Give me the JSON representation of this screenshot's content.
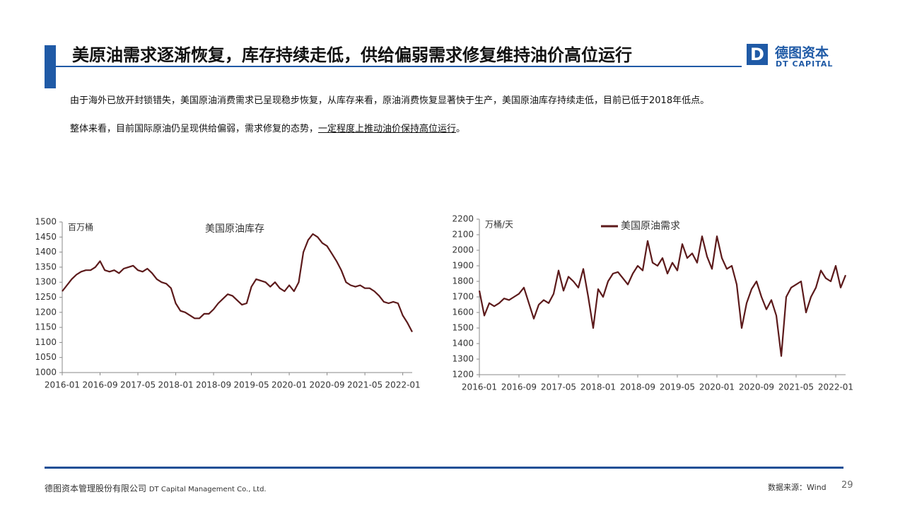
{
  "header": {
    "title": "美原油需求逐渐恢复，库存持续走低，供给偏弱需求修复维持油价高位运行",
    "logo_cn": "德图资本",
    "logo_en": "DT CAPITAL",
    "logo_mark": "D"
  },
  "body": {
    "paragraph_1": "由于海外已放开封锁错失，美国原油消费需求已呈现稳步恢复，从库存来看，原油消费恢复显著快于生产，美国原油库存持续走低，目前已低于2018年低点。",
    "paragraph_2_plain": "整体来看，目前国际原油仍呈现供给偏弱，需求修复的态势，",
    "paragraph_2_underlined": "一定程度上推动油价保持高位运行",
    "paragraph_2_end": "。"
  },
  "chart_data": [
    {
      "type": "line",
      "unit_label": "百万桶",
      "legend_line": false,
      "x": [
        "2016-01",
        "2016-02",
        "2016-03",
        "2016-04",
        "2016-05",
        "2016-06",
        "2016-07",
        "2016-08",
        "2016-09",
        "2016-10",
        "2016-11",
        "2016-12",
        "2017-01",
        "2017-02",
        "2017-03",
        "2017-04",
        "2017-05",
        "2017-06",
        "2017-07",
        "2017-08",
        "2017-09",
        "2017-10",
        "2017-11",
        "2017-12",
        "2018-01",
        "2018-02",
        "2018-03",
        "2018-04",
        "2018-05",
        "2018-06",
        "2018-07",
        "2018-08",
        "2018-09",
        "2018-10",
        "2018-11",
        "2018-12",
        "2019-01",
        "2019-02",
        "2019-03",
        "2019-04",
        "2019-05",
        "2019-06",
        "2019-07",
        "2019-08",
        "2019-09",
        "2019-10",
        "2019-11",
        "2019-12",
        "2020-01",
        "2020-02",
        "2020-03",
        "2020-04",
        "2020-05",
        "2020-06",
        "2020-07",
        "2020-08",
        "2020-09",
        "2020-10",
        "2020-11",
        "2020-12",
        "2021-01",
        "2021-02",
        "2021-03",
        "2021-04",
        "2021-05",
        "2021-06",
        "2021-07",
        "2021-08",
        "2021-09",
        "2021-10",
        "2021-11",
        "2021-12",
        "2022-01",
        "2022-02",
        "2022-03"
      ],
      "series": [
        {
          "name": "美国原油库存",
          "color": "#5c1a1b",
          "values": [
            1270,
            1290,
            1310,
            1325,
            1335,
            1340,
            1340,
            1350,
            1370,
            1340,
            1335,
            1340,
            1330,
            1345,
            1350,
            1355,
            1340,
            1335,
            1345,
            1330,
            1310,
            1300,
            1295,
            1280,
            1230,
            1205,
            1200,
            1190,
            1180,
            1180,
            1195,
            1195,
            1210,
            1230,
            1245,
            1260,
            1255,
            1240,
            1225,
            1230,
            1285,
            1310,
            1305,
            1300,
            1285,
            1300,
            1280,
            1270,
            1290,
            1270,
            1300,
            1400,
            1440,
            1460,
            1450,
            1430,
            1420,
            1395,
            1370,
            1340,
            1300,
            1290,
            1285,
            1290,
            1280,
            1280,
            1270,
            1255,
            1235,
            1230,
            1235,
            1230,
            1190,
            1165,
            1135
          ]
        }
      ],
      "ylim": [
        1000,
        1500
      ],
      "yticks": [
        1000,
        1050,
        1100,
        1150,
        1200,
        1250,
        1300,
        1350,
        1400,
        1450,
        1500
      ],
      "xticks": [
        "2016-01",
        "2016-09",
        "2017-05",
        "2018-01",
        "2018-09",
        "2019-05",
        "2020-01",
        "2020-09",
        "2021-05",
        "2022-01"
      ]
    },
    {
      "type": "line",
      "unit_label": "万桶/天",
      "legend_line": true,
      "x": [
        "2016-01",
        "2016-02",
        "2016-03",
        "2016-04",
        "2016-05",
        "2016-06",
        "2016-07",
        "2016-08",
        "2016-09",
        "2016-10",
        "2016-11",
        "2016-12",
        "2017-01",
        "2017-02",
        "2017-03",
        "2017-04",
        "2017-05",
        "2017-06",
        "2017-07",
        "2017-08",
        "2017-09",
        "2017-10",
        "2017-11",
        "2017-12",
        "2018-01",
        "2018-02",
        "2018-03",
        "2018-04",
        "2018-05",
        "2018-06",
        "2018-07",
        "2018-08",
        "2018-09",
        "2018-10",
        "2018-11",
        "2018-12",
        "2019-01",
        "2019-02",
        "2019-03",
        "2019-04",
        "2019-05",
        "2019-06",
        "2019-07",
        "2019-08",
        "2019-09",
        "2019-10",
        "2019-11",
        "2019-12",
        "2020-01",
        "2020-02",
        "2020-03",
        "2020-04",
        "2020-05",
        "2020-06",
        "2020-07",
        "2020-08",
        "2020-09",
        "2020-10",
        "2020-11",
        "2020-12",
        "2021-01",
        "2021-02",
        "2021-03",
        "2021-04",
        "2021-05",
        "2021-06",
        "2021-07",
        "2021-08",
        "2021-09",
        "2021-10",
        "2021-11",
        "2021-12",
        "2022-01",
        "2022-02",
        "2022-03"
      ],
      "series": [
        {
          "name": "美国原油需求",
          "color": "#5c1a1b",
          "values": [
            1740,
            1580,
            1660,
            1640,
            1660,
            1690,
            1680,
            1700,
            1720,
            1760,
            1660,
            1560,
            1650,
            1680,
            1660,
            1720,
            1870,
            1740,
            1830,
            1800,
            1760,
            1880,
            1700,
            1500,
            1750,
            1700,
            1800,
            1850,
            1860,
            1820,
            1780,
            1850,
            1900,
            1870,
            2060,
            1920,
            1900,
            1950,
            1850,
            1920,
            1870,
            2040,
            1950,
            1980,
            1920,
            2090,
            1960,
            1880,
            2090,
            1950,
            1880,
            1900,
            1780,
            1500,
            1660,
            1750,
            1800,
            1700,
            1620,
            1680,
            1580,
            1320,
            1700,
            1760,
            1780,
            1800,
            1600,
            1700,
            1760,
            1870,
            1820,
            1800,
            1900,
            1760,
            1840
          ]
        }
      ],
      "ylim": [
        1200,
        2200
      ],
      "yticks": [
        1200,
        1300,
        1400,
        1500,
        1600,
        1700,
        1800,
        1900,
        2000,
        2100,
        2200
      ],
      "xticks": [
        "2016-01",
        "2016-09",
        "2017-05",
        "2018-01",
        "2018-09",
        "2019-05",
        "2020-01",
        "2020-09",
        "2021-05",
        "2022-01"
      ]
    }
  ],
  "footer": {
    "company_cn": "德图资本管理股份有限公司",
    "company_en": "DT Capital Management Co., Ltd.",
    "source": "数据来源：Wind",
    "page_number": 29
  }
}
